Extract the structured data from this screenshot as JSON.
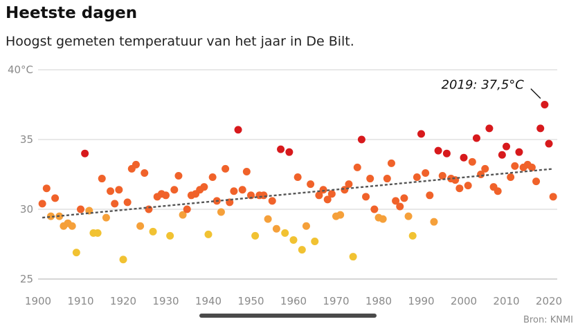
{
  "chart_data": {
    "type": "scatter",
    "title": "Heetste dagen",
    "subtitle": "Hoogst gemeten temperatuur van het jaar in De Bilt.",
    "source": "Bron: KNMI",
    "x_ticks": [
      "1900",
      "1910",
      "1920",
      "1930",
      "1940",
      "1950",
      "1960",
      "1970",
      "1980",
      "1990",
      "2000",
      "2010",
      "2020"
    ],
    "y_ticks": [
      "40°C",
      "35",
      "30",
      "25"
    ],
    "xlim": [
      1900,
      2022
    ],
    "ylim": [
      25,
      40
    ],
    "grid": true,
    "annotation": {
      "text": "2019: 37,5°C",
      "x": 2019,
      "y": 37.5
    },
    "trend": {
      "start": [
        1901,
        29.4
      ],
      "end": [
        2021,
        32.9
      ]
    },
    "colors": {
      "hot": "#d7191c",
      "warm": "#f0622a",
      "mild": "#f5a03a",
      "cool": "#f1c232",
      "trend": "#555555",
      "grid": "#d9d9d9"
    },
    "series": [
      {
        "points": [
          [
            1901,
            30.4
          ],
          [
            1902,
            31.5
          ],
          [
            1903,
            29.5
          ],
          [
            1904,
            30.8
          ],
          [
            1905,
            29.5
          ],
          [
            1906,
            28.8
          ],
          [
            1907,
            29.0
          ],
          [
            1908,
            28.8
          ],
          [
            1909,
            26.9
          ],
          [
            1910,
            30.0
          ],
          [
            1911,
            34.0
          ],
          [
            1912,
            29.9
          ],
          [
            1913,
            28.3
          ],
          [
            1914,
            28.3
          ],
          [
            1915,
            32.2
          ],
          [
            1916,
            29.4
          ],
          [
            1917,
            31.3
          ],
          [
            1918,
            30.4
          ],
          [
            1919,
            31.4
          ],
          [
            1920,
            26.4
          ],
          [
            1921,
            30.5
          ],
          [
            1922,
            32.9
          ],
          [
            1923,
            33.2
          ],
          [
            1924,
            28.8
          ],
          [
            1925,
            32.6
          ],
          [
            1926,
            30.0
          ],
          [
            1927,
            28.4
          ],
          [
            1928,
            30.9
          ],
          [
            1929,
            31.1
          ],
          [
            1930,
            31.0
          ],
          [
            1931,
            28.1
          ],
          [
            1932,
            31.4
          ],
          [
            1933,
            32.4
          ],
          [
            1934,
            29.6
          ],
          [
            1935,
            30.0
          ],
          [
            1936,
            31.0
          ],
          [
            1937,
            31.1
          ],
          [
            1938,
            31.4
          ],
          [
            1939,
            31.6
          ],
          [
            1940,
            28.2
          ],
          [
            1941,
            32.3
          ],
          [
            1942,
            30.6
          ],
          [
            1943,
            29.8
          ],
          [
            1944,
            32.9
          ],
          [
            1945,
            30.5
          ],
          [
            1946,
            31.3
          ],
          [
            1947,
            35.7
          ],
          [
            1948,
            31.4
          ],
          [
            1949,
            32.7
          ],
          [
            1950,
            31.0
          ],
          [
            1951,
            28.1
          ],
          [
            1952,
            31.0
          ],
          [
            1953,
            31.0
          ],
          [
            1954,
            29.3
          ],
          [
            1955,
            30.6
          ],
          [
            1956,
            28.6
          ],
          [
            1957,
            34.3
          ],
          [
            1958,
            28.3
          ],
          [
            1959,
            34.1
          ],
          [
            1960,
            27.8
          ],
          [
            1961,
            32.3
          ],
          [
            1962,
            27.1
          ],
          [
            1963,
            28.8
          ],
          [
            1964,
            31.8
          ],
          [
            1965,
            27.7
          ],
          [
            1966,
            31.0
          ],
          [
            1967,
            31.4
          ],
          [
            1968,
            30.7
          ],
          [
            1969,
            31.1
          ],
          [
            1970,
            29.5
          ],
          [
            1971,
            29.6
          ],
          [
            1972,
            31.4
          ],
          [
            1973,
            31.8
          ],
          [
            1974,
            26.6
          ],
          [
            1975,
            33.0
          ],
          [
            1976,
            35.0
          ],
          [
            1977,
            30.9
          ],
          [
            1978,
            32.2
          ],
          [
            1979,
            30.0
          ],
          [
            1980,
            29.4
          ],
          [
            1981,
            29.3
          ],
          [
            1982,
            32.2
          ],
          [
            1983,
            33.3
          ],
          [
            1984,
            30.6
          ],
          [
            1985,
            30.2
          ],
          [
            1986,
            30.8
          ],
          [
            1987,
            29.5
          ],
          [
            1988,
            28.1
          ],
          [
            1989,
            32.3
          ],
          [
            1990,
            35.4
          ],
          [
            1991,
            32.6
          ],
          [
            1992,
            31.0
          ],
          [
            1993,
            29.1
          ],
          [
            1994,
            34.2
          ],
          [
            1995,
            32.4
          ],
          [
            1996,
            34.0
          ],
          [
            1997,
            32.2
          ],
          [
            1998,
            32.1
          ],
          [
            1999,
            31.5
          ],
          [
            2000,
            33.7
          ],
          [
            2001,
            31.7
          ],
          [
            2002,
            33.4
          ],
          [
            2003,
            35.1
          ],
          [
            2004,
            32.5
          ],
          [
            2005,
            32.9
          ],
          [
            2006,
            35.8
          ],
          [
            2007,
            31.6
          ],
          [
            2008,
            31.3
          ],
          [
            2009,
            33.9
          ],
          [
            2010,
            34.5
          ],
          [
            2011,
            32.3
          ],
          [
            2012,
            33.1
          ],
          [
            2013,
            34.1
          ],
          [
            2014,
            33.0
          ],
          [
            2015,
            33.2
          ],
          [
            2016,
            33.0
          ],
          [
            2017,
            32.0
          ],
          [
            2018,
            35.8
          ],
          [
            2019,
            37.5
          ],
          [
            2020,
            34.7
          ],
          [
            2021,
            30.9
          ]
        ]
      }
    ]
  }
}
